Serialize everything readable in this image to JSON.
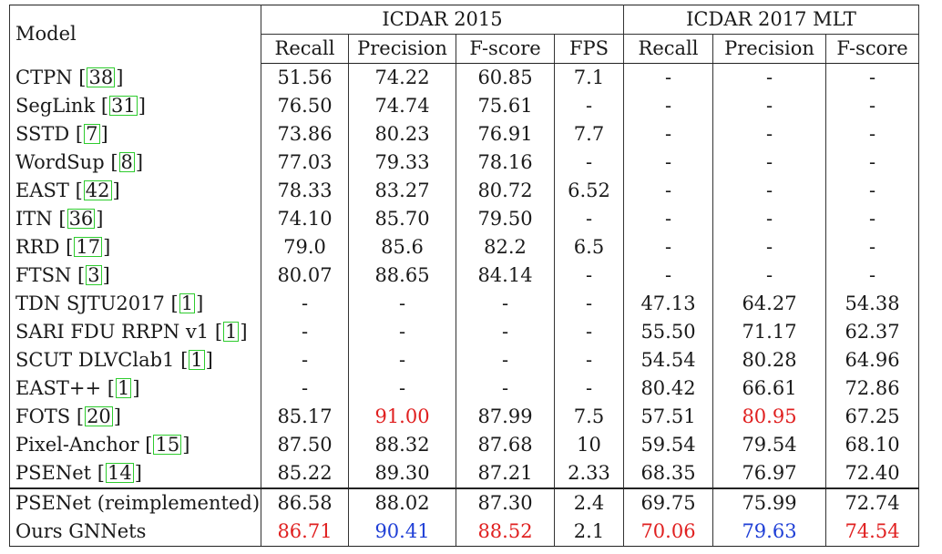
{
  "table": {
    "header": {
      "model_label": "Model",
      "group1": "ICDAR 2015",
      "group2": "ICDAR 2017 MLT",
      "group1_cols": [
        "Recall",
        "Precision",
        "F-score",
        "FPS"
      ],
      "group2_cols": [
        "Recall",
        "Precision",
        "F-score"
      ]
    },
    "rows": [
      {
        "name": "CTPN",
        "cite": "38",
        "values": [
          "51.56",
          "74.22",
          "60.85",
          "7.1",
          "-",
          "-",
          "-"
        ]
      },
      {
        "name": "SegLink",
        "cite": "31",
        "values": [
          "76.50",
          "74.74",
          "75.61",
          "-",
          "-",
          "-",
          "-"
        ]
      },
      {
        "name": "SSTD",
        "cite": "7",
        "values": [
          "73.86",
          "80.23",
          "76.91",
          "7.7",
          "-",
          "-",
          "-"
        ]
      },
      {
        "name": "WordSup",
        "cite": "8",
        "values": [
          "77.03",
          "79.33",
          "78.16",
          "-",
          "-",
          "-",
          "-"
        ]
      },
      {
        "name": "EAST",
        "cite": "42",
        "values": [
          "78.33",
          "83.27",
          "80.72",
          "6.52",
          "-",
          "-",
          "-"
        ]
      },
      {
        "name": "ITN",
        "cite": "36",
        "values": [
          "74.10",
          "85.70",
          "79.50",
          "-",
          "-",
          "-",
          "-"
        ]
      },
      {
        "name": "RRD",
        "cite": "17",
        "values": [
          "79.0",
          "85.6",
          "82.2",
          "6.5",
          "-",
          "-",
          "-"
        ]
      },
      {
        "name": "FTSN",
        "cite": "3",
        "values": [
          "80.07",
          "88.65",
          "84.14",
          "-",
          "-",
          "-",
          "-"
        ]
      },
      {
        "name": "TDN SJTU2017",
        "cite": "1",
        "values": [
          "-",
          "-",
          "-",
          "-",
          "47.13",
          "64.27",
          "54.38"
        ]
      },
      {
        "name": "SARI FDU RRPN v1",
        "cite": "1",
        "values": [
          "-",
          "-",
          "-",
          "-",
          "55.50",
          "71.17",
          "62.37"
        ]
      },
      {
        "name": "SCUT DLVClab1",
        "cite": "1",
        "values": [
          "-",
          "-",
          "-",
          "-",
          "54.54",
          "80.28",
          "64.96"
        ]
      },
      {
        "name": "EAST++",
        "cite": "1",
        "values": [
          "-",
          "-",
          "-",
          "-",
          "80.42",
          "66.61",
          "72.86"
        ]
      },
      {
        "name": "FOTS",
        "cite": "20",
        "values": [
          "85.17",
          "91.00",
          "87.99",
          "7.5",
          "57.51",
          "80.95",
          "67.25"
        ]
      },
      {
        "name": "Pixel-Anchor",
        "cite": "15",
        "values": [
          "87.50",
          "88.32",
          "87.68",
          "10",
          "59.54",
          "79.54",
          "68.10"
        ]
      },
      {
        "name": "PSENet",
        "cite": "14",
        "values": [
          "85.22",
          "89.30",
          "87.21",
          "2.33",
          "68.35",
          "76.97",
          "72.40"
        ]
      }
    ],
    "extra_rows": [
      {
        "name": "PSENet (reimplemented)",
        "values": [
          "86.58",
          "88.02",
          "87.30",
          "2.4",
          "69.75",
          "75.99",
          "72.74"
        ]
      },
      {
        "name": "Ours GNNets",
        "values": [
          "86.71",
          "90.41",
          "88.52",
          "2.1",
          "70.06",
          "79.63",
          "74.54"
        ]
      }
    ],
    "highlight_colors": {
      "best": "#e02020",
      "second": "#1f3fd6",
      "cite_box": "#2ecc2e"
    }
  }
}
